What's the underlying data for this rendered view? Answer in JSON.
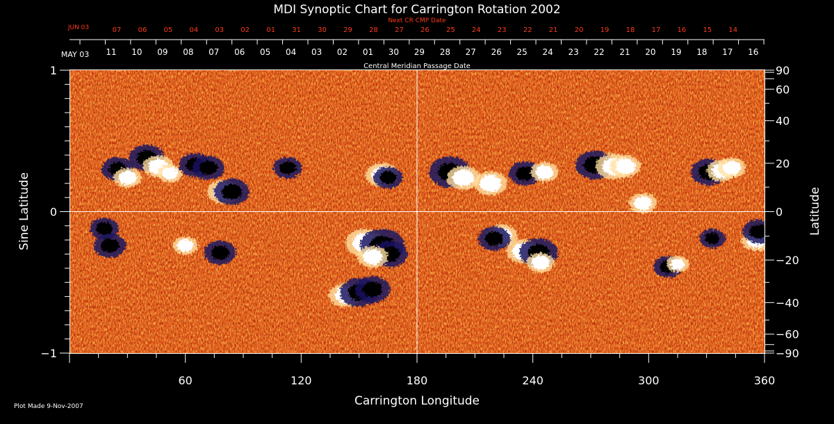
{
  "chart_data": {
    "type": "heatmap",
    "title": "MDI Synoptic Chart for Carrington Rotation 2002",
    "xlabel": "Carrington Longitude",
    "ylabel_left": "Sine Latitude",
    "ylabel_right": "Latitude",
    "xlim": [
      0,
      360
    ],
    "ylim": [
      -1,
      1
    ],
    "x_ticks": [
      60,
      120,
      180,
      240,
      300,
      360
    ],
    "y_ticks_left": [
      {
        "value": 1,
        "label": "1"
      },
      {
        "value": 0,
        "label": "0"
      },
      {
        "value": -1,
        "label": "−1"
      }
    ],
    "y_ticks_right": [
      90,
      60,
      40,
      20,
      0,
      -20,
      -40,
      -60,
      -90
    ],
    "top_axis_label": "Central Meridian Passage Date",
    "top_axis_start_label": "MAY 03",
    "top_axis_dates": [
      "11",
      "10",
      "09",
      "08",
      "07",
      "06",
      "05",
      "04",
      "03",
      "02",
      "01",
      "30",
      "29",
      "28",
      "27",
      "26",
      "25",
      "24",
      "23",
      "22",
      "21",
      "20",
      "19",
      "18",
      "17",
      "16"
    ],
    "next_cr_label": "Next CR CMP Date",
    "next_cr_start_label": "JUN 03",
    "next_cr_dates": [
      "07",
      "06",
      "05",
      "04",
      "03",
      "02",
      "01",
      "31",
      "30",
      "29",
      "28",
      "27",
      "26",
      "25",
      "24",
      "23",
      "22",
      "21",
      "20",
      "19",
      "18",
      "17",
      "16",
      "15",
      "14"
    ],
    "footer": "Plot Made  9-Nov-2007",
    "colors": {
      "background": "#000000",
      "text": "#ffffff",
      "next_cr_text": "#ff3a1a",
      "field_base": "#e8601a",
      "field_noise_light": "#ffb040",
      "field_noise_dark": "#b02010",
      "positive_polarity": "#ffffff",
      "negative_polarity": "#000000",
      "negative_halo": "#1a1460"
    },
    "active_regions": [
      {
        "lon": 25,
        "sinlat": 0.3,
        "polarity": "negative",
        "strength": 0.6
      },
      {
        "lon": 30,
        "sinlat": 0.24,
        "polarity": "positive",
        "strength": 0.6
      },
      {
        "lon": 40,
        "sinlat": 0.38,
        "polarity": "negative",
        "strength": 0.7
      },
      {
        "lon": 46,
        "sinlat": 0.32,
        "polarity": "positive",
        "strength": 0.7
      },
      {
        "lon": 52,
        "sinlat": 0.27,
        "polarity": "positive",
        "strength": 0.5
      },
      {
        "lon": 65,
        "sinlat": 0.33,
        "polarity": "negative",
        "strength": 0.6
      },
      {
        "lon": 72,
        "sinlat": 0.31,
        "polarity": "negative",
        "strength": 0.6
      },
      {
        "lon": 80,
        "sinlat": 0.14,
        "polarity": "positive",
        "strength": 0.8
      },
      {
        "lon": 84,
        "sinlat": 0.14,
        "polarity": "negative",
        "strength": 0.7
      },
      {
        "lon": 113,
        "sinlat": 0.31,
        "polarity": "negative",
        "strength": 0.5
      },
      {
        "lon": 162,
        "sinlat": 0.26,
        "polarity": "positive",
        "strength": 0.8
      },
      {
        "lon": 165,
        "sinlat": 0.24,
        "polarity": "negative",
        "strength": 0.5
      },
      {
        "lon": 197,
        "sinlat": 0.28,
        "polarity": "negative",
        "strength": 0.9
      },
      {
        "lon": 204,
        "sinlat": 0.24,
        "polarity": "positive",
        "strength": 0.8
      },
      {
        "lon": 218,
        "sinlat": 0.2,
        "polarity": "positive",
        "strength": 0.8
      },
      {
        "lon": 236,
        "sinlat": 0.27,
        "polarity": "negative",
        "strength": 0.6
      },
      {
        "lon": 246,
        "sinlat": 0.28,
        "polarity": "positive",
        "strength": 0.6
      },
      {
        "lon": 272,
        "sinlat": 0.33,
        "polarity": "negative",
        "strength": 0.8
      },
      {
        "lon": 282,
        "sinlat": 0.32,
        "polarity": "positive",
        "strength": 0.9
      },
      {
        "lon": 288,
        "sinlat": 0.32,
        "polarity": "positive",
        "strength": 0.7
      },
      {
        "lon": 297,
        "sinlat": 0.06,
        "polarity": "positive",
        "strength": 0.6
      },
      {
        "lon": 331,
        "sinlat": 0.28,
        "polarity": "negative",
        "strength": 0.7
      },
      {
        "lon": 338,
        "sinlat": 0.29,
        "polarity": "positive",
        "strength": 0.7
      },
      {
        "lon": 343,
        "sinlat": 0.31,
        "polarity": "positive",
        "strength": 0.6
      },
      {
        "lon": 18,
        "sinlat": -0.12,
        "polarity": "negative",
        "strength": 0.5
      },
      {
        "lon": 21,
        "sinlat": -0.24,
        "polarity": "negative",
        "strength": 0.6
      },
      {
        "lon": 60,
        "sinlat": -0.24,
        "polarity": "positive",
        "strength": 0.5
      },
      {
        "lon": 78,
        "sinlat": -0.29,
        "polarity": "negative",
        "strength": 0.6
      },
      {
        "lon": 153,
        "sinlat": -0.22,
        "polarity": "positive",
        "strength": 1.0
      },
      {
        "lon": 162,
        "sinlat": -0.24,
        "polarity": "negative",
        "strength": 1.0
      },
      {
        "lon": 166,
        "sinlat": -0.3,
        "polarity": "negative",
        "strength": 0.7
      },
      {
        "lon": 157,
        "sinlat": -0.32,
        "polarity": "positive",
        "strength": 0.7
      },
      {
        "lon": 143,
        "sinlat": -0.59,
        "polarity": "positive",
        "strength": 0.8
      },
      {
        "lon": 150,
        "sinlat": -0.57,
        "polarity": "negative",
        "strength": 0.8
      },
      {
        "lon": 157,
        "sinlat": -0.55,
        "polarity": "negative",
        "strength": 0.7
      },
      {
        "lon": 224,
        "sinlat": -0.17,
        "polarity": "positive",
        "strength": 0.7
      },
      {
        "lon": 220,
        "sinlat": -0.19,
        "polarity": "negative",
        "strength": 0.6
      },
      {
        "lon": 235,
        "sinlat": -0.28,
        "polarity": "positive",
        "strength": 0.8
      },
      {
        "lon": 243,
        "sinlat": -0.29,
        "polarity": "negative",
        "strength": 0.8
      },
      {
        "lon": 244,
        "sinlat": -0.36,
        "polarity": "positive",
        "strength": 0.6
      },
      {
        "lon": 310,
        "sinlat": -0.39,
        "polarity": "negative",
        "strength": 0.5
      },
      {
        "lon": 315,
        "sinlat": -0.37,
        "polarity": "positive",
        "strength": 0.4
      },
      {
        "lon": 333,
        "sinlat": -0.19,
        "polarity": "negative",
        "strength": 0.4
      },
      {
        "lon": 356,
        "sinlat": -0.2,
        "polarity": "positive",
        "strength": 0.7
      },
      {
        "lon": 357,
        "sinlat": -0.14,
        "polarity": "negative",
        "strength": 0.6
      }
    ]
  }
}
